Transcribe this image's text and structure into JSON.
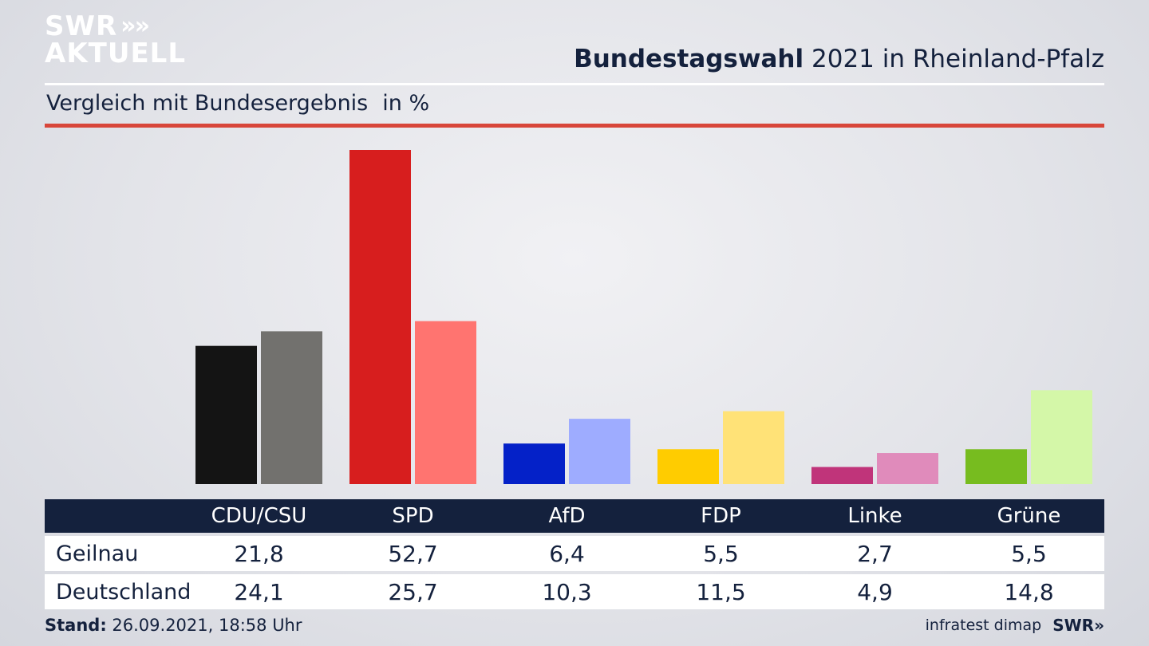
{
  "brand": {
    "line1": "SWR",
    "line2": "AKTUELL",
    "chevrons": "»",
    "footer_logo": "SWR»"
  },
  "header": {
    "title_bold": "Bundestagswahl",
    "title_rest": "2021 in Rheinland-Pfalz"
  },
  "subtitle": {
    "text": "Vergleich mit Bundesergebnis",
    "unit": "in %"
  },
  "chart_data": {
    "type": "bar",
    "categories": [
      "CDU/CSU",
      "SPD",
      "AfD",
      "FDP",
      "Linke",
      "Grüne"
    ],
    "series": [
      {
        "name": "Geilnau",
        "values": [
          21.8,
          52.7,
          6.4,
          5.5,
          2.7,
          5.5
        ],
        "colors": [
          "#141414",
          "#d71e1e",
          "#0421c8",
          "#ffcc00",
          "#c0347a",
          "#77bc1f"
        ]
      },
      {
        "name": "Deutschland",
        "values": [
          24.1,
          25.7,
          10.3,
          11.5,
          4.9,
          14.8
        ],
        "colors": [
          "#72716e",
          "#ff7470",
          "#9eacff",
          "#ffe277",
          "#e08bbb",
          "#d4f7a8"
        ]
      }
    ],
    "ylim": [
      0,
      52.7
    ],
    "grid": false
  },
  "footer": {
    "stand_label": "Stand:",
    "stand_value": "26.09.2021, 18:58 Uhr",
    "source": "infratest dimap"
  }
}
